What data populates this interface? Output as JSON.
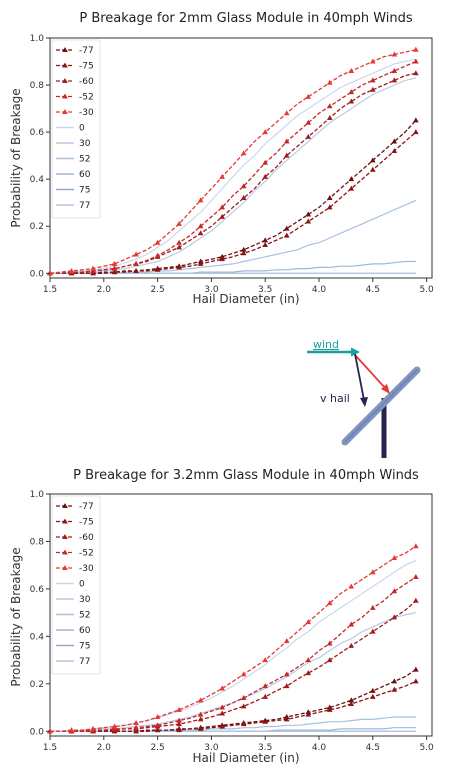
{
  "chart_data": [
    {
      "type": "line",
      "title": "P Breakage for 2mm Glass Module in 40mph Winds",
      "xlabel": "Hail Diameter (in)",
      "ylabel": "Probability of Breakage",
      "xlim": [
        1.5,
        5.05
      ],
      "ylim": [
        -0.02,
        1.0
      ],
      "xticks": [
        "1.5",
        "2.0",
        "2.5",
        "3.0",
        "3.5",
        "4.0",
        "4.5",
        "5.0"
      ],
      "yticks": [
        "0.0",
        "0.2",
        "0.4",
        "0.6",
        "0.8",
        "1.0"
      ],
      "grid": false,
      "legend": "upper-left",
      "x": [
        1.5,
        1.6,
        1.7,
        1.8,
        1.9,
        2.0,
        2.1,
        2.2,
        2.3,
        2.4,
        2.5,
        2.6,
        2.7,
        2.8,
        2.9,
        3.0,
        3.1,
        3.2,
        3.3,
        3.4,
        3.5,
        3.6,
        3.7,
        3.8,
        3.9,
        4.0,
        4.1,
        4.2,
        4.3,
        4.4,
        4.5,
        4.6,
        4.7,
        4.8,
        4.9
      ],
      "series": [
        {
          "name": "-77",
          "color": "#6b0f0f",
          "marker": true,
          "values": [
            0.0,
            0.0,
            0.0,
            0.0,
            0.0,
            0.005,
            0.005,
            0.01,
            0.01,
            0.015,
            0.02,
            0.025,
            0.03,
            0.04,
            0.05,
            0.06,
            0.07,
            0.085,
            0.1,
            0.12,
            0.14,
            0.16,
            0.19,
            0.22,
            0.25,
            0.28,
            0.32,
            0.36,
            0.4,
            0.44,
            0.48,
            0.52,
            0.56,
            0.6,
            0.65
          ]
        },
        {
          "name": "-75",
          "color": "#8b1414",
          "marker": true,
          "values": [
            0.0,
            0.0,
            0.0,
            0.0,
            0.0,
            0.0,
            0.005,
            0.005,
            0.01,
            0.01,
            0.015,
            0.02,
            0.025,
            0.03,
            0.04,
            0.05,
            0.06,
            0.07,
            0.085,
            0.1,
            0.12,
            0.14,
            0.16,
            0.19,
            0.22,
            0.25,
            0.28,
            0.32,
            0.36,
            0.4,
            0.44,
            0.48,
            0.52,
            0.56,
            0.6
          ]
        },
        {
          "name": "-60",
          "color": "#a01c1c",
          "marker": true,
          "values": [
            0.0,
            0.0,
            0.005,
            0.005,
            0.01,
            0.015,
            0.02,
            0.03,
            0.04,
            0.05,
            0.07,
            0.09,
            0.11,
            0.14,
            0.17,
            0.2,
            0.24,
            0.28,
            0.32,
            0.36,
            0.41,
            0.45,
            0.5,
            0.54,
            0.58,
            0.62,
            0.66,
            0.7,
            0.73,
            0.76,
            0.78,
            0.8,
            0.82,
            0.84,
            0.85
          ]
        },
        {
          "name": "-52",
          "color": "#c62828",
          "marker": true,
          "values": [
            0.0,
            0.0,
            0.005,
            0.005,
            0.01,
            0.015,
            0.02,
            0.03,
            0.04,
            0.055,
            0.075,
            0.1,
            0.13,
            0.16,
            0.2,
            0.24,
            0.28,
            0.33,
            0.37,
            0.42,
            0.47,
            0.51,
            0.56,
            0.6,
            0.64,
            0.68,
            0.71,
            0.74,
            0.77,
            0.8,
            0.82,
            0.84,
            0.86,
            0.88,
            0.9
          ]
        },
        {
          "name": "-30",
          "color": "#e53935",
          "marker": true,
          "values": [
            0.0,
            0.005,
            0.01,
            0.015,
            0.02,
            0.03,
            0.04,
            0.06,
            0.08,
            0.1,
            0.13,
            0.17,
            0.21,
            0.26,
            0.31,
            0.36,
            0.41,
            0.46,
            0.51,
            0.56,
            0.6,
            0.64,
            0.68,
            0.72,
            0.75,
            0.78,
            0.81,
            0.84,
            0.86,
            0.88,
            0.9,
            0.92,
            0.93,
            0.94,
            0.95
          ]
        },
        {
          "name": "0",
          "color": "#c9d9ec",
          "marker": false,
          "values": [
            0.0,
            0.0,
            0.005,
            0.01,
            0.015,
            0.02,
            0.03,
            0.045,
            0.06,
            0.08,
            0.11,
            0.14,
            0.18,
            0.22,
            0.26,
            0.31,
            0.36,
            0.41,
            0.46,
            0.5,
            0.55,
            0.59,
            0.63,
            0.67,
            0.7,
            0.73,
            0.76,
            0.79,
            0.81,
            0.83,
            0.85,
            0.87,
            0.89,
            0.9,
            0.91
          ]
        },
        {
          "name": "30",
          "color": "#b7cce6",
          "marker": false,
          "values": [
            0.0,
            0.0,
            0.0,
            0.005,
            0.005,
            0.01,
            0.015,
            0.02,
            0.03,
            0.04,
            0.05,
            0.07,
            0.09,
            0.12,
            0.15,
            0.18,
            0.22,
            0.26,
            0.3,
            0.35,
            0.39,
            0.44,
            0.48,
            0.52,
            0.56,
            0.6,
            0.64,
            0.67,
            0.7,
            0.73,
            0.76,
            0.78,
            0.8,
            0.82,
            0.83
          ]
        },
        {
          "name": "52",
          "color": "#a9c1e0",
          "marker": false,
          "values": [
            0.0,
            0.0,
            0.0,
            0.0,
            0.0,
            0.0,
            0.0,
            0.005,
            0.005,
            0.005,
            0.01,
            0.01,
            0.015,
            0.02,
            0.025,
            0.03,
            0.035,
            0.04,
            0.05,
            0.06,
            0.07,
            0.08,
            0.09,
            0.1,
            0.12,
            0.13,
            0.15,
            0.17,
            0.19,
            0.21,
            0.23,
            0.25,
            0.27,
            0.29,
            0.31
          ]
        },
        {
          "name": "60",
          "color": "#9fb8da",
          "marker": false,
          "values": [
            0.0,
            0.0,
            0.0,
            0.0,
            0.0,
            0.0,
            0.0,
            0.0,
            0.0,
            0.0,
            0.0,
            0.0,
            0.0,
            0.0,
            0.005,
            0.005,
            0.005,
            0.005,
            0.01,
            0.01,
            0.01,
            0.015,
            0.015,
            0.02,
            0.02,
            0.025,
            0.025,
            0.03,
            0.03,
            0.035,
            0.04,
            0.04,
            0.045,
            0.05,
            0.05
          ]
        },
        {
          "name": "75",
          "color": "#8fa8cc",
          "marker": false,
          "values": [
            0.0,
            0.0,
            0.0,
            0.0,
            0.0,
            0.0,
            0.0,
            0.0,
            0.0,
            0.0,
            0.0,
            0.0,
            0.0,
            0.0,
            0.0,
            0.0,
            0.0,
            0.0,
            0.0,
            0.0,
            0.0,
            0.0,
            0.0,
            0.0,
            0.0,
            0.0,
            0.0,
            0.0,
            0.0,
            0.0,
            0.0,
            0.0,
            0.0,
            0.0,
            0.0
          ]
        },
        {
          "name": "77",
          "color": "#b3c6e3",
          "marker": false,
          "values": [
            0.0,
            0.0,
            0.0,
            0.0,
            0.0,
            0.0,
            0.0,
            0.0,
            0.0,
            0.0,
            0.0,
            0.0,
            0.0,
            0.0,
            0.0,
            0.0,
            0.0,
            0.0,
            0.0,
            0.0,
            0.0,
            0.0,
            0.0,
            0.0,
            0.0,
            0.0,
            0.0,
            0.0,
            0.0,
            0.0,
            0.0,
            0.0,
            0.0,
            0.0,
            0.0
          ]
        }
      ]
    },
    {
      "type": "line",
      "title": "P Breakage for 3.2mm Glass Module in 40mph Winds",
      "xlabel": "Hail Diameter (in)",
      "ylabel": "Probability of Breakage",
      "xlim": [
        1.5,
        5.05
      ],
      "ylim": [
        -0.02,
        1.0
      ],
      "xticks": [
        "1.5",
        "2.0",
        "2.5",
        "3.0",
        "3.5",
        "4.0",
        "4.5",
        "5.0"
      ],
      "yticks": [
        "0.0",
        "0.2",
        "0.4",
        "0.6",
        "0.8",
        "1.0"
      ],
      "grid": false,
      "legend": "upper-left",
      "x": [
        1.5,
        1.6,
        1.7,
        1.8,
        1.9,
        2.0,
        2.1,
        2.2,
        2.3,
        2.4,
        2.5,
        2.6,
        2.7,
        2.8,
        2.9,
        3.0,
        3.1,
        3.2,
        3.3,
        3.4,
        3.5,
        3.6,
        3.7,
        3.8,
        3.9,
        4.0,
        4.1,
        4.2,
        4.3,
        4.4,
        4.5,
        4.6,
        4.7,
        4.8,
        4.9
      ],
      "series": [
        {
          "name": "-77",
          "color": "#6b0f0f",
          "marker": true,
          "values": [
            0.0,
            0.0,
            0.0,
            0.0,
            0.0,
            0.0,
            0.0,
            0.0,
            0.0,
            0.005,
            0.005,
            0.005,
            0.01,
            0.01,
            0.015,
            0.02,
            0.025,
            0.03,
            0.035,
            0.04,
            0.045,
            0.05,
            0.06,
            0.07,
            0.08,
            0.09,
            0.1,
            0.115,
            0.13,
            0.15,
            0.17,
            0.19,
            0.21,
            0.23,
            0.26
          ]
        },
        {
          "name": "-75",
          "color": "#8b1414",
          "marker": true,
          "values": [
            0.0,
            0.0,
            0.0,
            0.0,
            0.0,
            0.0,
            0.0,
            0.0,
            0.0,
            0.0,
            0.005,
            0.005,
            0.005,
            0.01,
            0.01,
            0.015,
            0.02,
            0.025,
            0.03,
            0.035,
            0.04,
            0.045,
            0.05,
            0.06,
            0.07,
            0.08,
            0.09,
            0.1,
            0.115,
            0.13,
            0.145,
            0.16,
            0.175,
            0.19,
            0.21
          ]
        },
        {
          "name": "-60",
          "color": "#a01c1c",
          "marker": true,
          "values": [
            0.0,
            0.0,
            0.0,
            0.0,
            0.0,
            0.005,
            0.005,
            0.01,
            0.01,
            0.015,
            0.02,
            0.025,
            0.03,
            0.04,
            0.05,
            0.06,
            0.075,
            0.09,
            0.105,
            0.125,
            0.145,
            0.17,
            0.19,
            0.22,
            0.245,
            0.27,
            0.3,
            0.33,
            0.36,
            0.39,
            0.42,
            0.45,
            0.48,
            0.51,
            0.55
          ]
        },
        {
          "name": "-52",
          "color": "#c62828",
          "marker": true,
          "values": [
            0.0,
            0.0,
            0.0,
            0.0,
            0.005,
            0.005,
            0.01,
            0.01,
            0.015,
            0.02,
            0.025,
            0.035,
            0.045,
            0.055,
            0.07,
            0.085,
            0.1,
            0.12,
            0.14,
            0.165,
            0.19,
            0.215,
            0.24,
            0.27,
            0.3,
            0.34,
            0.37,
            0.41,
            0.45,
            0.48,
            0.52,
            0.55,
            0.59,
            0.62,
            0.65
          ]
        },
        {
          "name": "-30",
          "color": "#e53935",
          "marker": true,
          "values": [
            0.0,
            0.0,
            0.005,
            0.005,
            0.01,
            0.015,
            0.02,
            0.025,
            0.035,
            0.045,
            0.06,
            0.075,
            0.09,
            0.11,
            0.13,
            0.155,
            0.18,
            0.21,
            0.24,
            0.27,
            0.3,
            0.34,
            0.38,
            0.42,
            0.46,
            0.5,
            0.54,
            0.58,
            0.61,
            0.64,
            0.67,
            0.7,
            0.73,
            0.75,
            0.78
          ]
        },
        {
          "name": "0",
          "color": "#c9d9ec",
          "marker": false,
          "values": [
            0.0,
            0.0,
            0.005,
            0.005,
            0.01,
            0.015,
            0.02,
            0.025,
            0.035,
            0.045,
            0.055,
            0.07,
            0.085,
            0.1,
            0.12,
            0.14,
            0.165,
            0.19,
            0.22,
            0.25,
            0.28,
            0.32,
            0.35,
            0.39,
            0.42,
            0.46,
            0.49,
            0.52,
            0.55,
            0.58,
            0.61,
            0.64,
            0.67,
            0.7,
            0.72
          ]
        },
        {
          "name": "30",
          "color": "#b7cce6",
          "marker": false,
          "values": [
            0.0,
            0.0,
            0.0,
            0.005,
            0.005,
            0.01,
            0.01,
            0.015,
            0.02,
            0.025,
            0.03,
            0.04,
            0.05,
            0.06,
            0.075,
            0.09,
            0.105,
            0.12,
            0.14,
            0.16,
            0.18,
            0.205,
            0.23,
            0.26,
            0.29,
            0.31,
            0.34,
            0.37,
            0.39,
            0.42,
            0.44,
            0.46,
            0.48,
            0.49,
            0.5
          ]
        },
        {
          "name": "52",
          "color": "#a9c1e0",
          "marker": false,
          "values": [
            0.0,
            0.0,
            0.0,
            0.0,
            0.0,
            0.0,
            0.0,
            0.0,
            0.0,
            0.0,
            0.0,
            0.005,
            0.005,
            0.005,
            0.005,
            0.01,
            0.01,
            0.01,
            0.015,
            0.015,
            0.02,
            0.02,
            0.025,
            0.025,
            0.03,
            0.035,
            0.04,
            0.04,
            0.045,
            0.05,
            0.05,
            0.055,
            0.06,
            0.06,
            0.06
          ]
        },
        {
          "name": "60",
          "color": "#9fb8da",
          "marker": false,
          "values": [
            0.0,
            0.0,
            0.0,
            0.0,
            0.0,
            0.0,
            0.0,
            0.0,
            0.0,
            0.0,
            0.0,
            0.0,
            0.0,
            0.0,
            0.0,
            0.0,
            0.0,
            0.0,
            0.0,
            0.0,
            0.0,
            0.005,
            0.005,
            0.005,
            0.005,
            0.005,
            0.005,
            0.01,
            0.01,
            0.01,
            0.01,
            0.01,
            0.015,
            0.015,
            0.015
          ]
        },
        {
          "name": "75",
          "color": "#8fa8cc",
          "marker": false,
          "values": [
            0.0,
            0.0,
            0.0,
            0.0,
            0.0,
            0.0,
            0.0,
            0.0,
            0.0,
            0.0,
            0.0,
            0.0,
            0.0,
            0.0,
            0.0,
            0.0,
            0.0,
            0.0,
            0.0,
            0.0,
            0.0,
            0.0,
            0.0,
            0.0,
            0.0,
            0.0,
            0.0,
            0.0,
            0.0,
            0.0,
            0.0,
            0.0,
            0.0,
            0.0,
            0.0
          ]
        },
        {
          "name": "77",
          "color": "#b3c6e3",
          "marker": false,
          "values": [
            0.0,
            0.0,
            0.0,
            0.0,
            0.0,
            0.0,
            0.0,
            0.0,
            0.0,
            0.0,
            0.0,
            0.0,
            0.0,
            0.0,
            0.0,
            0.0,
            0.0,
            0.0,
            0.0,
            0.0,
            0.0,
            0.0,
            0.0,
            0.0,
            0.0,
            0.0,
            0.0,
            0.0,
            0.0,
            0.0,
            0.0,
            0.0,
            0.0,
            0.0,
            0.0
          ]
        }
      ]
    }
  ],
  "diagram": {
    "wind_label": "wind",
    "hail_label": "v hail",
    "colors": {
      "wind": "#1a9e9e",
      "hail": "#23244f",
      "red": "#e53935",
      "panel": "#7f95bf",
      "post": "#23244f"
    }
  }
}
